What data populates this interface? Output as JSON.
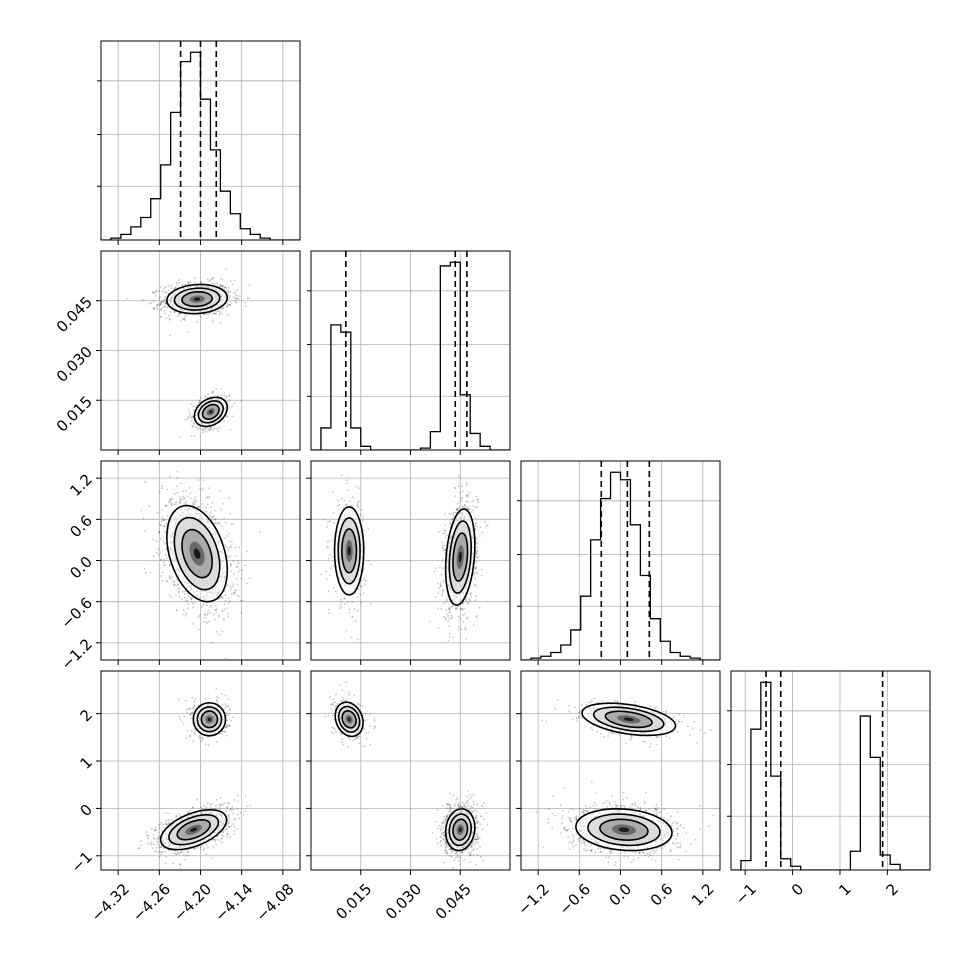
{
  "chart_data": {
    "type": "corner",
    "parameters": [
      {
        "ticks": [
          -4.32,
          -4.26,
          -4.2,
          -4.14,
          -4.08
        ],
        "tick_labels": [
          "−4.32",
          "−4.26",
          "−4.20",
          "−4.14",
          "−4.08"
        ],
        "range": [
          -4.345,
          -4.055
        ]
      },
      {
        "ticks": [
          0.015,
          0.03,
          0.045
        ],
        "tick_labels": [
          "0.015",
          "0.030",
          "0.045"
        ],
        "range": [
          0.0,
          0.06
        ]
      },
      {
        "ticks": [
          -1.2,
          -0.6,
          0.0,
          0.6,
          1.2
        ],
        "tick_labels": [
          "−1.2",
          "−0.6",
          "0.0",
          "0.6",
          "1.2"
        ],
        "range": [
          -1.45,
          1.45
        ]
      },
      {
        "ticks": [
          -1,
          0,
          1,
          2
        ],
        "tick_labels": [
          "−1",
          "0",
          "1",
          "2"
        ],
        "range": [
          -1.3,
          2.9
        ]
      }
    ],
    "quantiles": [
      [
        -4.229,
        -4.2,
        -4.177
      ],
      [
        0.0105,
        0.0435,
        0.047
      ],
      [
        -0.28,
        0.1,
        0.42
      ],
      [
        -0.56,
        -0.25,
        1.9
      ]
    ],
    "histograms": [
      [
        0,
        1,
        3,
        7,
        12,
        22,
        40,
        68,
        95,
        100,
        75,
        48,
        26,
        14,
        6,
        3,
        1,
        0,
        0,
        0
      ],
      [
        0,
        12,
        68,
        64,
        12,
        2,
        0,
        0,
        0,
        0,
        0,
        1,
        10,
        100,
        102,
        30,
        9,
        2,
        0,
        0
      ],
      [
        0,
        1,
        2,
        4,
        8,
        16,
        34,
        64,
        86,
        100,
        96,
        72,
        45,
        22,
        10,
        4,
        2,
        1,
        0,
        0
      ],
      [
        0,
        5,
        75,
        100,
        50,
        6,
        2,
        0,
        0,
        0,
        0,
        0,
        10,
        82,
        60,
        8,
        3,
        0,
        0,
        0
      ]
    ],
    "modes": [
      [
        {
          "x": -4.205,
          "y": 0.0455,
          "sx": 0.022,
          "sy": 0.0022,
          "rho": 0.1,
          "w": 0.7
        },
        {
          "x": -4.185,
          "y": 0.0115,
          "sx": 0.012,
          "sy": 0.0022,
          "rho": 0.3,
          "w": 0.3
        }
      ],
      [
        {
          "x": -4.205,
          "y": 0.1,
          "sx": 0.022,
          "sy": 0.35,
          "rho": -0.35,
          "w": 1.0
        }
      ],
      [
        {
          "x": 0.0115,
          "y": 0.14,
          "sx": 0.0022,
          "sy": 0.32,
          "rho": 0.0,
          "w": 0.3
        },
        {
          "x": 0.045,
          "y": 0.05,
          "sx": 0.0022,
          "sy": 0.35,
          "rho": 0.25,
          "w": 0.7
        }
      ],
      [
        {
          "x": -4.187,
          "y": 1.88,
          "sx": 0.012,
          "sy": 0.17,
          "rho": 0.0,
          "w": 0.3
        },
        {
          "x": -4.21,
          "y": -0.45,
          "sx": 0.024,
          "sy": 0.21,
          "rho": 0.5,
          "w": 0.7
        }
      ],
      [
        {
          "x": 0.0115,
          "y": 1.88,
          "sx": 0.0021,
          "sy": 0.18,
          "rho": -0.2,
          "w": 0.3
        },
        {
          "x": 0.045,
          "y": -0.45,
          "sx": 0.0022,
          "sy": 0.22,
          "rho": 0.1,
          "w": 0.7
        }
      ],
      [
        {
          "x": 0.12,
          "y": 1.88,
          "sx": 0.34,
          "sy": 0.17,
          "rho": -0.4,
          "w": 0.3
        },
        {
          "x": 0.05,
          "y": -0.45,
          "sx": 0.35,
          "sy": 0.22,
          "rho": -0.15,
          "w": 0.7
        }
      ]
    ],
    "grid": true,
    "title": "",
    "xlabel": "",
    "ylabel": ""
  }
}
